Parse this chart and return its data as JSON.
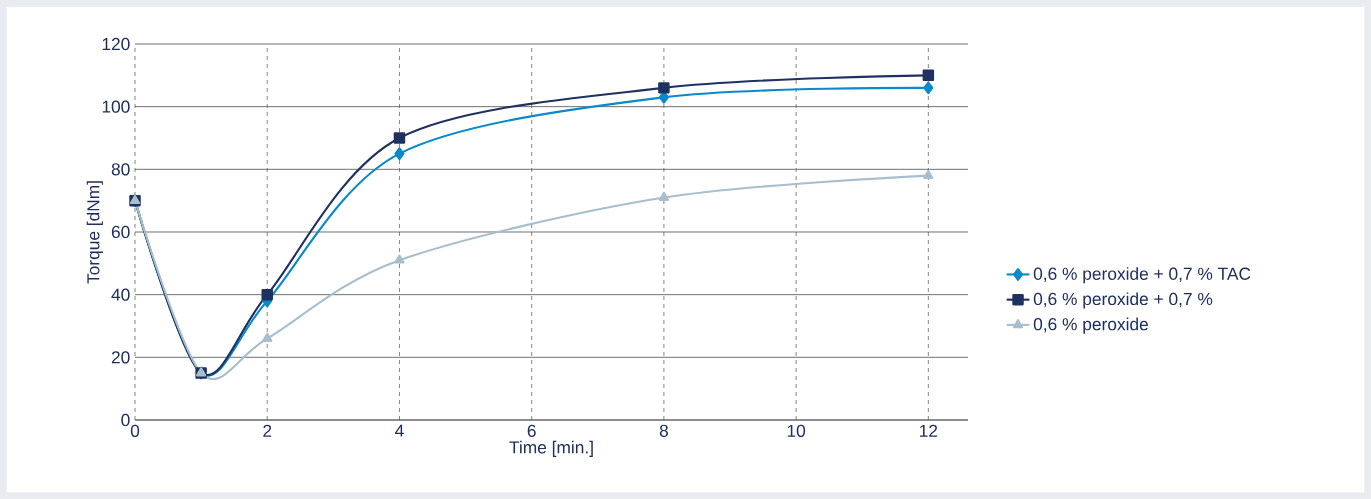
{
  "chart_data": {
    "type": "line",
    "xlabel": "Time [min.]",
    "ylabel": "Torque [dNm]",
    "x": [
      0,
      1,
      2,
      4,
      8,
      12
    ],
    "xlim": [
      0,
      12.6
    ],
    "xticks": [
      0,
      2,
      4,
      6,
      8,
      10,
      12
    ],
    "ylim": [
      0,
      120
    ],
    "yticks": [
      0,
      20,
      40,
      60,
      80,
      100,
      120
    ],
    "grid": true,
    "legend": "right",
    "line_style": "solid",
    "series": [
      {
        "name": "0,6 % peroxide + 0,7 % TAC",
        "color": "#0a8ac8",
        "marker": "diamond",
        "values": [
          70,
          15,
          38,
          85,
          103,
          106
        ]
      },
      {
        "name": "0,6 % peroxide + 0,7 %",
        "color": "#1e3160",
        "marker": "square",
        "values": [
          70,
          15,
          40,
          90,
          106,
          110
        ]
      },
      {
        "name": "0,6 % peroxide",
        "color": "#a7bfcd",
        "marker": "triangle",
        "values": [
          70,
          15,
          26,
          51,
          71,
          78
        ]
      }
    ]
  }
}
